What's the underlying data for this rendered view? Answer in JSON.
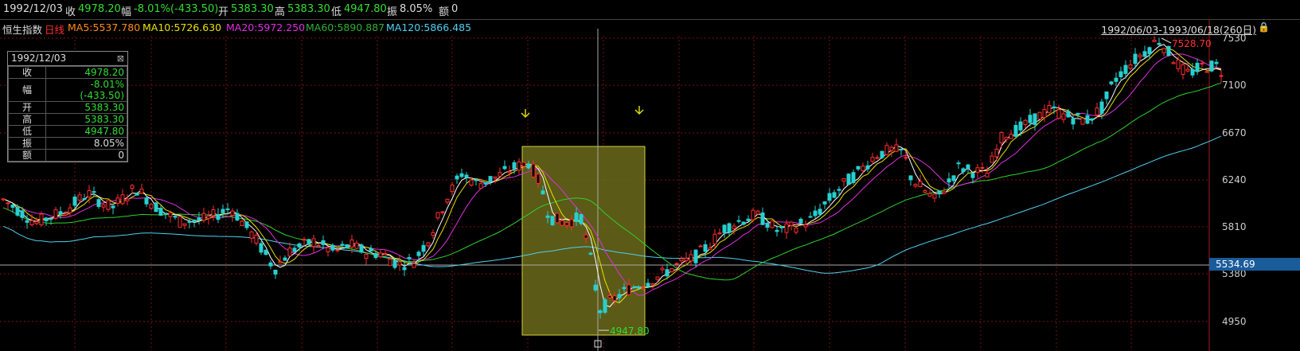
{
  "header": {
    "date": "1992/12/03",
    "close_label": "收",
    "close_value": "4978.20",
    "change_label": "幅",
    "change_value": "-8.01%(-433.50)",
    "open_label": "开",
    "open_value": "5383.30",
    "high_label": "高",
    "high_value": "5383.30",
    "low_label": "低",
    "low_value": "4947.80",
    "amp_label": "振",
    "amp_value": "8.05%",
    "amount_label": "额",
    "amount_value": "0"
  },
  "ma_bar": {
    "index_name": "恒生指数",
    "period": "日线",
    "ma5": "MA5:5537.780",
    "ma10": "MA10:5726.630",
    "ma20": "MA20:5972.250",
    "ma60": "MA60:5890.887",
    "ma120": "MA120:5866.485",
    "range": "1992/06/03-1993/06/18(260日)"
  },
  "info_panel": {
    "date": "1992/12/03",
    "rows": [
      {
        "k": "收",
        "v": "4978.20",
        "color": "#33dd33"
      },
      {
        "k": "幅",
        "v": "-8.01%(-433.50)",
        "color": "#33dd33"
      },
      {
        "k": "开",
        "v": "5383.30",
        "color": "#33dd33"
      },
      {
        "k": "高",
        "v": "5383.30",
        "color": "#33dd33"
      },
      {
        "k": "低",
        "v": "4947.80",
        "color": "#33dd33"
      },
      {
        "k": "振",
        "v": "8.05%",
        "color": "#dddddd"
      },
      {
        "k": "额",
        "v": "0",
        "color": "#dddddd"
      }
    ]
  },
  "price_axis": {
    "labels": [
      "7530",
      "7100",
      "6670",
      "6240",
      "5810",
      "5380",
      "4950"
    ],
    "current": "5534.69"
  },
  "annotations": {
    "high_mark": "7528.70",
    "low_mark": "4947.80"
  },
  "colors": {
    "up": "#ff2d2d",
    "down": "#27d0d0",
    "ma5": "#ffffff",
    "ma10": "#e8e000",
    "ma20": "#e030e0",
    "ma60": "#30d030",
    "ma120": "#50d0f0",
    "selection": "#6b6a1a"
  }
}
